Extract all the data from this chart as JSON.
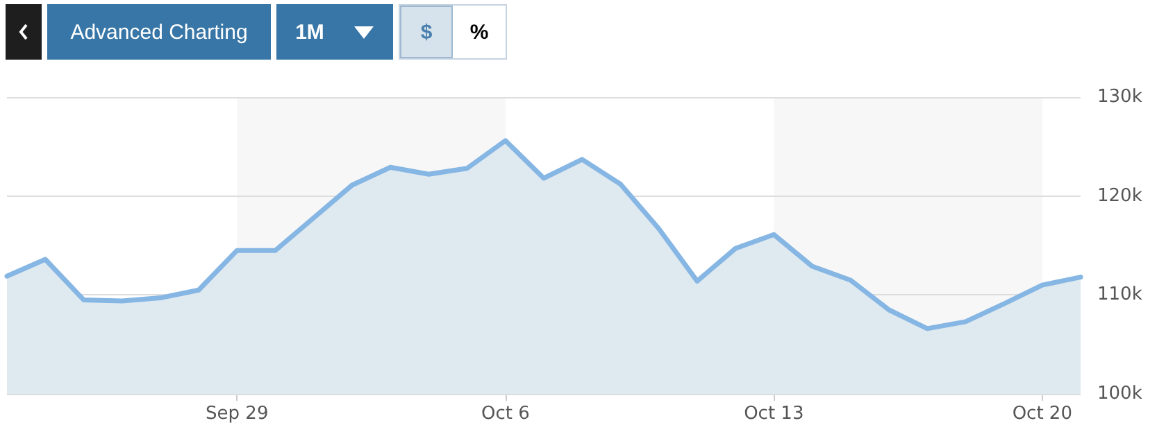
{
  "chart_data": {
    "type": "area",
    "annotations": [
      "Advanced Charting",
      "1M",
      "$",
      "%"
    ],
    "x": [
      "--09-23",
      "--09-24",
      "--09-25",
      "--09-26",
      "--09-27",
      "--09-28",
      "--09-29",
      "--09-30",
      "--10-01",
      "--10-02",
      "--10-03",
      "--10-04",
      "--10-05",
      "--10-06",
      "--10-07",
      "--10-08",
      "--10-09",
      "--10-10",
      "--10-11",
      "--10-12",
      "--10-13",
      "--10-14",
      "--10-15",
      "--10-16",
      "--10-17",
      "--10-18",
      "--10-19",
      "--10-20",
      "--10-21"
    ],
    "series": [
      {
        "color": "#86b6e3",
        "values": [
          111900,
          113600,
          109500,
          109400,
          109700,
          110500,
          114500,
          114500,
          117800,
          121100,
          122900,
          122200,
          122800,
          125600,
          121800,
          123700,
          121200,
          116700,
          111400,
          114700,
          116100,
          112900,
          111500,
          108500,
          106600,
          107300,
          109100,
          111000,
          111800
        ]
      }
    ],
    "xlim": [
      "--09-23",
      "--10-21"
    ],
    "xticks": [
      {
        "value": "--09-29",
        "label": "Sep 29"
      },
      {
        "value": "--10-06",
        "label": "Oct 6"
      },
      {
        "value": "--10-13",
        "label": "Oct 13"
      },
      {
        "value": "--10-20",
        "label": "Oct 20"
      }
    ],
    "ylim": [
      100000,
      130000
    ],
    "yticks": [
      {
        "value": 100000,
        "label": "100k"
      },
      {
        "value": 110000,
        "label": "110k"
      },
      {
        "value": 120000,
        "label": "120k"
      },
      {
        "value": 130000,
        "label": "130k"
      }
    ],
    "bands": [
      {
        "axis": "x",
        "from": "--09-29",
        "to": "--10-06",
        "color": "#f7f7f7"
      },
      {
        "axis": "x",
        "from": "--10-13",
        "to": "--10-20",
        "color": "#f7f7f7"
      }
    ],
    "grid": "y",
    "marker": "none",
    "line_style": "solid"
  }
}
